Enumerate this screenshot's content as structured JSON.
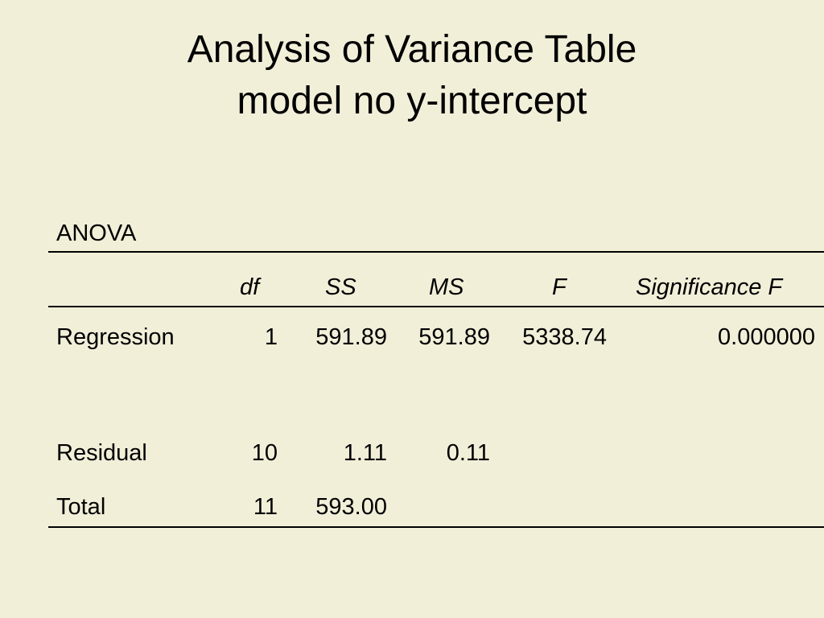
{
  "title": {
    "line1": "Analysis of Variance Table",
    "line2": "model no y-intercept"
  },
  "table": {
    "label": "ANOVA",
    "headers": {
      "df": "df",
      "ss": "SS",
      "ms": "MS",
      "f": "F",
      "significance": "Significance F"
    },
    "rows": [
      {
        "label": "Regression",
        "df": "1",
        "ss": "591.89",
        "ms": "591.89",
        "f": "5338.74",
        "significance": "0.000000"
      },
      {
        "label": "Residual",
        "df": "10",
        "ss": "1.11",
        "ms": "0.11",
        "f": "",
        "significance": ""
      },
      {
        "label": "Total",
        "df": "11",
        "ss": "593.00",
        "ms": "",
        "f": "",
        "significance": ""
      }
    ]
  },
  "colors": {
    "background": "#f2efd9",
    "text": "#000000"
  }
}
